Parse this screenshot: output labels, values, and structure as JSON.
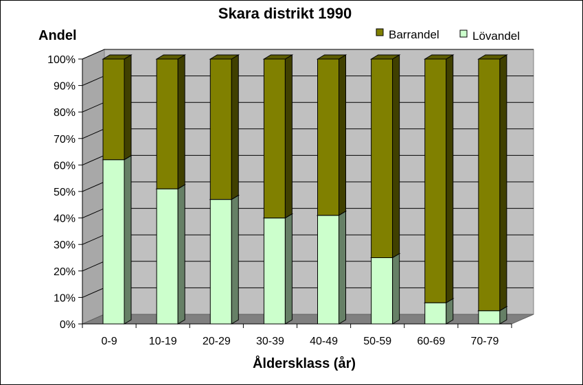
{
  "chart_data": {
    "type": "bar",
    "stacked": true,
    "percent_stacked": true,
    "three_d": true,
    "title": "Skara distrikt 1990",
    "ylabel": "Andel",
    "xlabel": "Åldersklass (år)",
    "ylim": [
      0,
      100
    ],
    "y_ticks": [
      "0%",
      "10%",
      "20%",
      "30%",
      "40%",
      "50%",
      "60%",
      "70%",
      "80%",
      "90%",
      "100%"
    ],
    "categories": [
      "0-9",
      "10-19",
      "20-29",
      "30-39",
      "40-49",
      "50-59",
      "60-69",
      "70-79"
    ],
    "grid": true,
    "legend_position": "top-right",
    "series": [
      {
        "name": "Lövandel",
        "color": "#ccffcc",
        "values": [
          62,
          51,
          47,
          40,
          41,
          25,
          8,
          5
        ]
      },
      {
        "name": "Barrandel",
        "color": "#808000",
        "values": [
          38,
          49,
          53,
          60,
          59,
          75,
          92,
          95
        ]
      }
    ],
    "legend": [
      {
        "name": "Barrandel",
        "color": "#808000"
      },
      {
        "name": "Lövandel",
        "color": "#ccffcc"
      }
    ]
  }
}
